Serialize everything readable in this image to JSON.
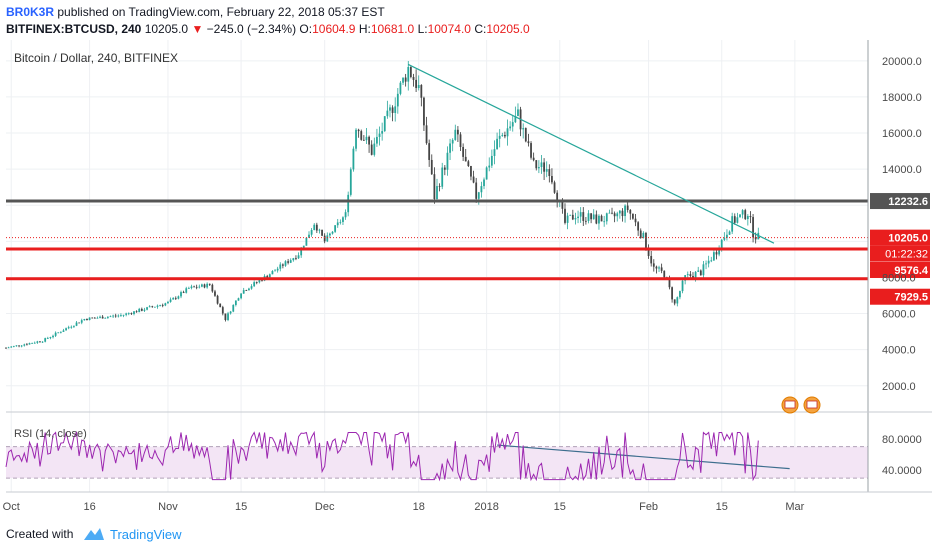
{
  "header": {
    "author": "BR0K3R",
    "published": "published on TradingView.com, February 22, 2018 05:37 EST",
    "symbol": "BITFINEX:BTCUSD, 240",
    "last": "10205.0",
    "change_arrow": "▼",
    "change": "−245.0 (−2.34%)",
    "o_label": "O:",
    "o_value": "10604.9",
    "h_label": "H:",
    "h_value": "10681.0",
    "l_label": "L:",
    "l_value": "10074.0",
    "c_label": "C:",
    "c_value": "10205.0"
  },
  "chart": {
    "title": "Bitcoin / Dollar, 240, BITFINEX",
    "rsi_title": "RSI (14, close)"
  },
  "footer": {
    "created": "Created with",
    "brand": "TradingView"
  },
  "chart_data": [
    {
      "type": "candlestick",
      "title": "Bitcoin / Dollar, 240, BITFINEX",
      "x_ticks": [
        "Oct",
        "16",
        "Nov",
        "15",
        "Dec",
        "18",
        "2018",
        "15",
        "Feb",
        "15",
        "Mar"
      ],
      "y_ticks": [
        20000,
        18000,
        16000,
        14000,
        12000,
        10000,
        8000,
        6000,
        4000,
        2000
      ],
      "y_tick_labels": [
        "20000.0",
        "18000.0",
        "16000.0",
        "14000.0",
        "",
        "",
        "8000.0",
        "6000.0",
        "4000.0",
        "2000.0"
      ],
      "price_path": [
        [
          "Oct 1",
          4100
        ],
        [
          "Oct 8",
          4500
        ],
        [
          "Oct 16",
          5700
        ],
        [
          "Oct 23",
          5900
        ],
        [
          "Nov 1",
          6600
        ],
        [
          "Nov 5",
          7400
        ],
        [
          "Nov 9",
          7600
        ],
        [
          "Nov 12",
          5700
        ],
        [
          "Nov 15",
          7200
        ],
        [
          "Nov 20",
          8100
        ],
        [
          "Nov 26",
          9300
        ],
        [
          "Nov 29",
          11000
        ],
        [
          "Dec 1",
          10000
        ],
        [
          "Dec 5",
          11500
        ],
        [
          "Dec 7",
          16500
        ],
        [
          "Dec 10",
          15000
        ],
        [
          "Dec 13",
          16800
        ],
        [
          "Dec 17",
          19600
        ],
        [
          "Dec 19",
          18500
        ],
        [
          "Dec 22",
          12500
        ],
        [
          "Dec 26",
          16000
        ],
        [
          "Dec 30",
          12500
        ],
        [
          "Jan 3",
          15500
        ],
        [
          "Jan 7",
          17000
        ],
        [
          "Jan 10",
          14200
        ],
        [
          "Jan 13",
          14000
        ],
        [
          "Jan 16",
          11000
        ],
        [
          "Jan 18",
          11500
        ],
        [
          "Jan 22",
          11200
        ],
        [
          "Jan 25",
          11300
        ],
        [
          "Jan 28",
          11800
        ],
        [
          "Jan 31",
          10200
        ],
        [
          "Feb 2",
          8500
        ],
        [
          "Feb 4",
          8200
        ],
        [
          "Feb 6",
          6500
        ],
        [
          "Feb 8",
          8000
        ],
        [
          "Feb 11",
          8300
        ],
        [
          "Feb 14",
          9500
        ],
        [
          "Feb 17",
          11100
        ],
        [
          "Feb 20",
          11600
        ],
        [
          "Feb 21",
          10500
        ],
        [
          "Feb 22",
          10205
        ]
      ],
      "levels": [
        {
          "value": 12232.6,
          "label": "12232.6",
          "color": "#555555"
        },
        {
          "value": 10205.0,
          "label": "10205.0",
          "color": "#e91e1e",
          "dotted": true
        },
        {
          "value": 9576.4,
          "label": "9576.4",
          "color": "#e91e1e"
        },
        {
          "value": 7929.5,
          "label": "7929.5",
          "color": "#e91e1e"
        }
      ],
      "countdown": "01:22:32",
      "trendline": {
        "from": [
          "Dec 17",
          19800
        ],
        "to": [
          "Feb 25",
          9900
        ],
        "color": "#26a69a"
      }
    },
    {
      "type": "line",
      "title": "RSI (14, close)",
      "y_ticks": [
        80,
        40
      ],
      "y_tick_labels": [
        "80.0000",
        "40.0000"
      ],
      "band": [
        30,
        70
      ],
      "trendline": {
        "from": [
          "Jan 3",
          72
        ],
        "to": [
          "Feb 28",
          42
        ]
      }
    }
  ],
  "colors": {
    "accent": "#2962ff",
    "down": "#e91e1e",
    "up_candle": "#26a69a",
    "down_candle": "#ef5350",
    "trend": "#26a69a",
    "rsi": "#9c27b0",
    "rsi_band": "#f3e5f5",
    "brand": "#2196f3"
  }
}
